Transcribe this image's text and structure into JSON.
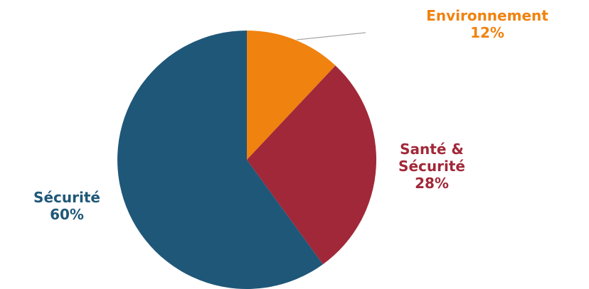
{
  "chart_data": {
    "type": "pie",
    "slices": [
      {
        "label": "Environnement",
        "value": 12,
        "display": "12%",
        "color": "#F0820F"
      },
      {
        "label": "Santé & Sécurité",
        "value": 28,
        "display": "28%",
        "color": "#A12838"
      },
      {
        "label": "Sécurité",
        "value": 60,
        "display": "60%",
        "color": "#1F5778"
      }
    ],
    "start_angle_deg": 0,
    "direction": "clockwise",
    "legend": "none",
    "leader_line_color": "#A6A6A6"
  },
  "labels": {
    "environnement_line1": "Environnement",
    "environnement_line2": "12%",
    "sante_line1": "Santé &",
    "sante_line2": "Sécurité",
    "sante_line3": "28%",
    "securite_line1": "Sécurité",
    "securite_line2": "60%"
  }
}
